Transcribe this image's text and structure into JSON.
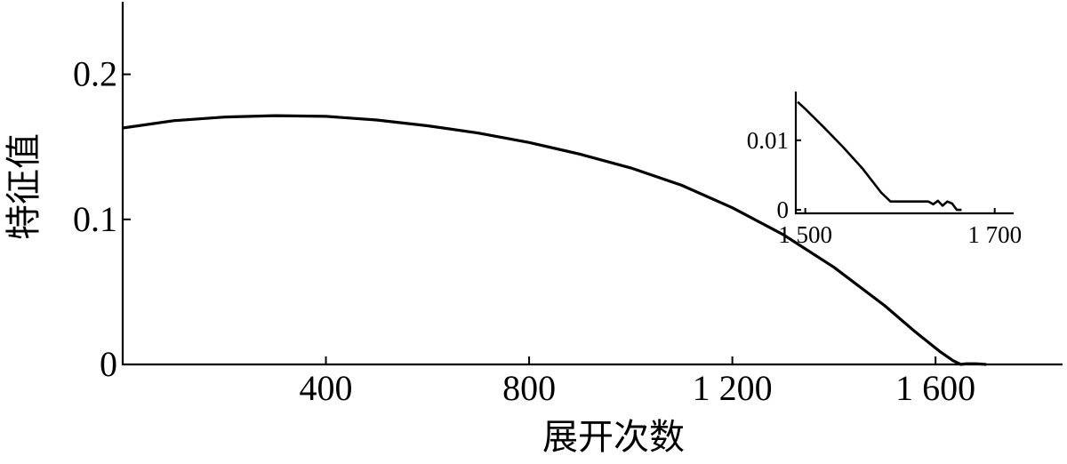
{
  "chart_data": [
    {
      "type": "line",
      "title": "",
      "xlabel": "展开次数",
      "ylabel": "特征值",
      "xlim": [
        0,
        1850
      ],
      "ylim": [
        0,
        0.25
      ],
      "xticks": [
        400,
        800,
        1200,
        1600
      ],
      "xtick_labels": [
        "400",
        "800",
        "1 200",
        "1 600"
      ],
      "yticks": [
        0,
        0.1,
        0.2
      ],
      "ytick_labels": [
        "0",
        "0.1",
        "0.2"
      ],
      "grid": false,
      "series": [
        {
          "x": [
            0,
            100,
            200,
            300,
            400,
            500,
            600,
            700,
            800,
            900,
            1000,
            1100,
            1200,
            1300,
            1400,
            1500,
            1560,
            1610,
            1635,
            1650,
            1660,
            1680,
            1700
          ],
          "y": [
            0.163,
            0.168,
            0.1705,
            0.1715,
            0.171,
            0.1685,
            0.1645,
            0.1595,
            0.153,
            0.145,
            0.1355,
            0.1235,
            0.108,
            0.0895,
            0.067,
            0.0405,
            0.0225,
            0.0085,
            0.0025,
            0.0,
            0.0005,
            0.0005,
            0.0
          ]
        }
      ]
    },
    {
      "type": "line",
      "title": "",
      "xlabel": "",
      "ylabel": "",
      "xlim": [
        1490,
        1720
      ],
      "ylim": [
        -0.0005,
        0.017
      ],
      "xticks": [
        1500,
        1700
      ],
      "xtick_labels": [
        "1 500",
        "1 700"
      ],
      "yticks": [
        0,
        0.01
      ],
      "ytick_labels": [
        "0",
        "0.01"
      ],
      "grid": false,
      "series": [
        {
          "x": [
            1492,
            1500,
            1520,
            1540,
            1560,
            1580,
            1590,
            1600,
            1620,
            1630,
            1635,
            1640,
            1645,
            1650,
            1655,
            1660,
            1665
          ],
          "y": [
            0.0155,
            0.0145,
            0.0118,
            0.009,
            0.006,
            0.0025,
            0.0012,
            0.0012,
            0.0012,
            0.0012,
            0.0008,
            0.0013,
            0.0006,
            0.0012,
            0.0009,
            0.0,
            0.0
          ]
        }
      ]
    }
  ]
}
